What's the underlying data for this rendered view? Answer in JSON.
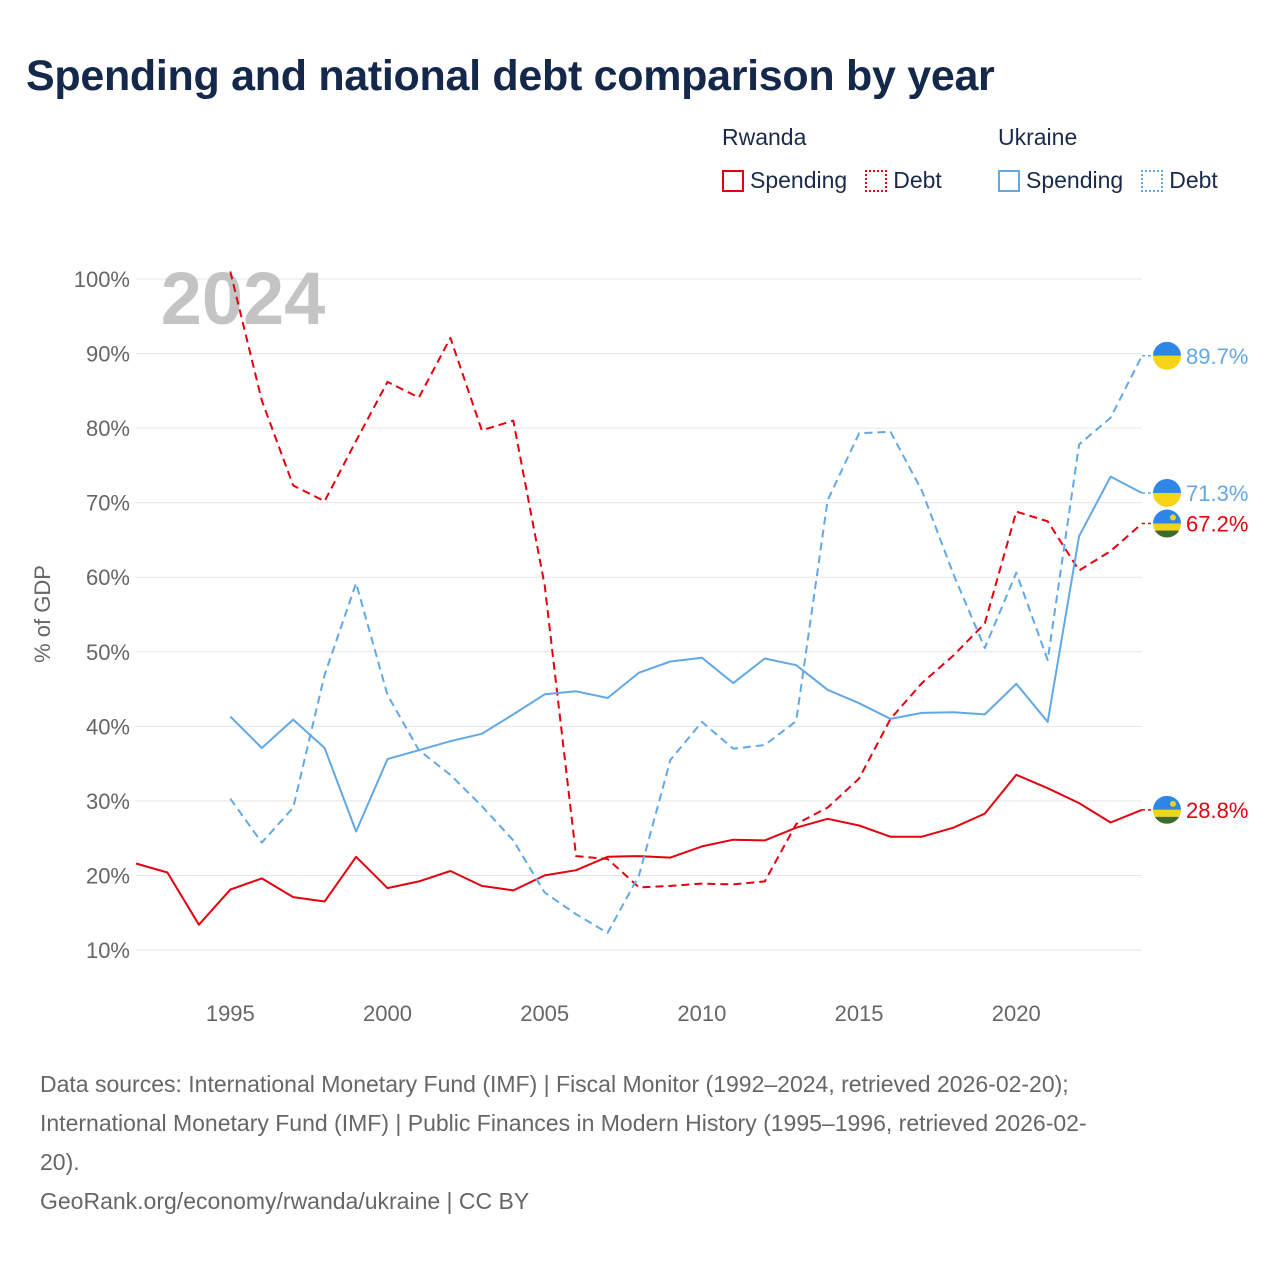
{
  "title": "Spending and national debt comparison by year",
  "legend": {
    "rwanda": {
      "title": "Rwanda",
      "spending": "Spending",
      "debt": "Debt"
    },
    "ukraine": {
      "title": "Ukraine",
      "spending": "Spending",
      "debt": "Debt"
    }
  },
  "year_watermark": "2024",
  "colors": {
    "rwanda": "#e3000f",
    "ukraine": "#62a8e5"
  },
  "sources": {
    "line1": "Data sources: International Monetary Fund (IMF) | Fiscal Monitor (1992–2024, retrieved 2026-02-20);",
    "line2": "International Monetary Fund (IMF) | Public Finances in Modern History (1995–1996, retrieved 2026-02-",
    "line3": "20).",
    "line4": "GeoRank.org/economy/rwanda/ukraine | CC BY"
  },
  "chart_data": {
    "type": "line",
    "title": "Spending and national debt comparison by year",
    "xlabel": "",
    "ylabel": "% of GDP",
    "xlim": [
      1992,
      2024
    ],
    "ylim": [
      5,
      105
    ],
    "xticks": [
      1995,
      2000,
      2005,
      2010,
      2015,
      2020
    ],
    "yticks": [
      10,
      20,
      30,
      40,
      50,
      60,
      70,
      80,
      90,
      100
    ],
    "grid": true,
    "series": [
      {
        "name": "Rwanda Spending",
        "country": "rwanda",
        "style": "solid",
        "x": [
          1992,
          1993,
          1994,
          1995,
          1996,
          1997,
          1998,
          1999,
          2000,
          2001,
          2002,
          2003,
          2004,
          2005,
          2006,
          2007,
          2008,
          2009,
          2010,
          2011,
          2012,
          2013,
          2014,
          2015,
          2016,
          2017,
          2018,
          2019,
          2020,
          2021,
          2022,
          2023,
          2024
        ],
        "values": [
          21.6,
          20.4,
          13.4,
          18.1,
          19.6,
          17.1,
          16.5,
          22.5,
          18.3,
          19.2,
          20.6,
          18.6,
          18.0,
          20.0,
          20.7,
          22.5,
          22.6,
          22.4,
          23.9,
          24.8,
          24.7,
          26.4,
          27.6,
          26.7,
          25.2,
          25.2,
          26.4,
          28.3,
          33.5,
          31.7,
          29.7,
          27.1,
          28.8
        ],
        "end_label": "28.8%"
      },
      {
        "name": "Rwanda Debt",
        "country": "rwanda",
        "style": "dashed",
        "x": [
          1995,
          1996,
          1997,
          1998,
          1999,
          2000,
          2001,
          2002,
          2003,
          2004,
          2005,
          2006,
          2007,
          2008,
          2009,
          2010,
          2011,
          2012,
          2013,
          2014,
          2015,
          2016,
          2017,
          2018,
          2019,
          2020,
          2021,
          2022,
          2023,
          2024
        ],
        "values": [
          101.0,
          83.7,
          72.3,
          70.2,
          78.3,
          86.2,
          84.1,
          92.1,
          79.7,
          81.0,
          58.9,
          22.6,
          22.2,
          18.4,
          18.6,
          18.9,
          18.8,
          19.2,
          26.9,
          29.1,
          33.0,
          41.0,
          45.8,
          49.5,
          53.8,
          68.8,
          67.5,
          60.9,
          63.5,
          67.2
        ],
        "end_label": "67.2%"
      },
      {
        "name": "Ukraine Spending",
        "country": "ukraine",
        "style": "solid",
        "x": [
          1995,
          1996,
          1997,
          1998,
          1999,
          2000,
          2001,
          2002,
          2003,
          2004,
          2005,
          2006,
          2007,
          2008,
          2009,
          2010,
          2011,
          2012,
          2013,
          2014,
          2015,
          2016,
          2017,
          2018,
          2019,
          2020,
          2021,
          2022,
          2023,
          2024
        ],
        "values": [
          41.3,
          37.1,
          40.9,
          37.1,
          25.9,
          35.6,
          36.8,
          38.0,
          39.0,
          41.6,
          44.3,
          44.7,
          43.8,
          47.2,
          48.7,
          49.2,
          45.8,
          49.1,
          48.2,
          44.9,
          43.1,
          41.0,
          41.8,
          41.9,
          41.6,
          45.7,
          40.6,
          65.5,
          73.5,
          71.3
        ],
        "end_label": "71.3%"
      },
      {
        "name": "Ukraine Debt",
        "country": "ukraine",
        "style": "dashed",
        "x": [
          1995,
          1996,
          1997,
          1998,
          1999,
          2000,
          2001,
          2002,
          2003,
          2004,
          2005,
          2006,
          2007,
          2008,
          2009,
          2010,
          2011,
          2012,
          2013,
          2014,
          2015,
          2016,
          2017,
          2018,
          2019,
          2020,
          2021,
          2022,
          2023,
          2024
        ],
        "values": [
          30.3,
          24.4,
          29.1,
          46.9,
          59.2,
          44.2,
          36.8,
          33.5,
          29.3,
          24.7,
          17.7,
          14.8,
          12.3,
          20.0,
          35.5,
          40.6,
          37.0,
          37.5,
          40.7,
          70.3,
          79.3,
          79.5,
          71.6,
          60.4,
          50.5,
          60.6,
          48.9,
          77.8,
          81.4,
          89.7
        ],
        "end_label": "89.7%"
      }
    ]
  }
}
